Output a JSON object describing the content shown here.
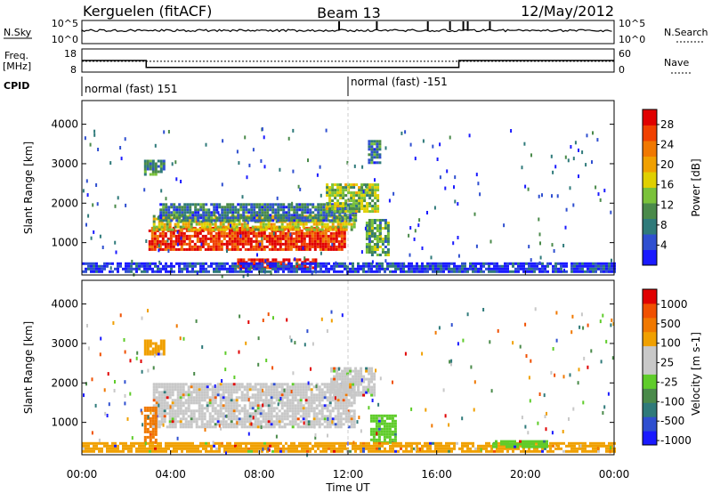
{
  "header": {
    "station": "Kerguelen (fitACF)",
    "beam": "Beam 13",
    "date": "12/May/2012"
  },
  "status_panels": {
    "nsky_label": "N.Sky",
    "nsearch_label": "N.Search",
    "freq_label_1": "Freq.",
    "freq_label_2": "[MHz]",
    "nave_label": "Nave",
    "cpid_label": "CPID",
    "noise_ticks": [
      "10^5",
      "10^0"
    ],
    "noise_right_ticks": [
      "10^5",
      "10^0"
    ],
    "freq_ticks": [
      "18",
      "8"
    ],
    "nave_ticks": [
      "60",
      "0"
    ],
    "cpid_segments": [
      {
        "name": "normal (fast) 151",
        "start_hour": 0,
        "end_hour": 12
      },
      {
        "name": "normal (fast) -151",
        "start_hour": 12,
        "end_hour": 24
      }
    ],
    "freq_profile": [
      {
        "start_hour": 0,
        "end_hour": 2.9,
        "mhz": 13
      },
      {
        "start_hour": 2.9,
        "end_hour": 17,
        "mhz": 10
      },
      {
        "start_hour": 17,
        "end_hour": 24,
        "mhz": 13
      }
    ],
    "nave_level": 28,
    "noise_spike_hours": [
      11.6,
      13.3,
      15.6,
      16.6,
      17.2,
      17.4,
      18.4
    ]
  },
  "chart_data": [
    {
      "type": "heatmap",
      "quantity": "power",
      "xlabel": "Time UT",
      "ylabel": "Slant Range [km]",
      "xlim": [
        0,
        24
      ],
      "ylim": [
        180,
        4600
      ],
      "x_ticks": [
        "00:00",
        "04:00",
        "08:00",
        "12:00",
        "16:00",
        "20:00",
        "00:00"
      ],
      "y_ticks": [
        1000,
        2000,
        3000,
        4000
      ],
      "colorbar": {
        "label": "Power [dB]",
        "ticks": [
          "4",
          "8",
          "12",
          "16",
          "20",
          "24",
          "28"
        ],
        "range": [
          0,
          31
        ],
        "colors": [
          "#1a1aff",
          "#2f4fd0",
          "#2f7a7a",
          "#4a8a4a",
          "#7ac23a",
          "#e0d000",
          "#f0a000",
          "#f07800",
          "#f04000",
          "#e00000"
        ]
      },
      "regions": [
        {
          "t0": 3.0,
          "t1": 11.8,
          "r0": 800,
          "r1": 1400,
          "level": 0.9
        },
        {
          "t0": 3.2,
          "t1": 12.3,
          "r0": 1300,
          "r1": 1700,
          "level": 0.55
        },
        {
          "t0": 3.5,
          "t1": 12.3,
          "r0": 1550,
          "r1": 2000,
          "level": 0.25
        },
        {
          "t0": 7.0,
          "t1": 10.5,
          "r0": 380,
          "r1": 600,
          "level": 0.95
        },
        {
          "t0": 11.0,
          "t1": 13.3,
          "r0": 1800,
          "r1": 2500,
          "level": 0.45
        },
        {
          "t0": 12.8,
          "t1": 13.8,
          "r0": 700,
          "r1": 1600,
          "level": 0.35
        },
        {
          "t0": 0.0,
          "t1": 24.0,
          "r0": 250,
          "r1": 500,
          "level": 0.1
        },
        {
          "t0": 2.8,
          "t1": 3.7,
          "r0": 2700,
          "r1": 3100,
          "level": 0.3
        },
        {
          "t0": 12.9,
          "t1": 13.5,
          "r0": 3000,
          "r1": 3600,
          "level": 0.25
        }
      ]
    },
    {
      "type": "heatmap",
      "quantity": "velocity",
      "xlabel": "Time UT",
      "ylabel": "Slant Range [km]",
      "xlim": [
        0,
        24
      ],
      "ylim": [
        180,
        4600
      ],
      "x_ticks": [
        "00:00",
        "04:00",
        "08:00",
        "12:00",
        "16:00",
        "20:00",
        "00:00"
      ],
      "y_ticks": [
        1000,
        2000,
        3000,
        4000
      ],
      "colorbar": {
        "label": "Velocity [m s-1]",
        "ticks": [
          "1000",
          "500",
          "100",
          "25",
          "-25",
          "-100",
          "-500",
          "-1000"
        ],
        "colors": [
          "#1a1aff",
          "#2f4fd0",
          "#2f7a7a",
          "#4a8a4a",
          "#5fcc2a",
          "#c8c8c8",
          "#c8c8c8",
          "#f0a000",
          "#f07800",
          "#f05000",
          "#e00000"
        ]
      },
      "regions": [
        {
          "t0": 3.2,
          "t1": 12.3,
          "r0": 900,
          "r1": 2000,
          "color": "#c8c8c8"
        },
        {
          "t0": 11.2,
          "t1": 13.2,
          "r0": 1700,
          "r1": 2400,
          "color": "#c8c8c8"
        },
        {
          "t0": 2.8,
          "t1": 3.3,
          "r0": 500,
          "r1": 1400,
          "color": "#f07800"
        },
        {
          "t0": 13.0,
          "t1": 14.2,
          "r0": 500,
          "r1": 1200,
          "color": "#5fcc2a"
        },
        {
          "t0": 0.0,
          "t1": 24.0,
          "r0": 250,
          "r1": 500,
          "color": "#f0a000"
        },
        {
          "t0": 18.5,
          "t1": 21.0,
          "r0": 350,
          "r1": 550,
          "color": "#5fcc2a"
        },
        {
          "t0": 2.8,
          "t1": 3.7,
          "r0": 2700,
          "r1": 3100,
          "color": "#f0a000"
        }
      ]
    }
  ]
}
